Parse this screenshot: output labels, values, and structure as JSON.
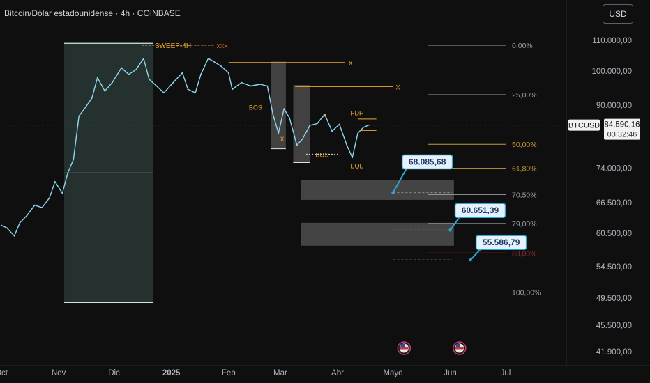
{
  "header": {
    "title": "Bitcoin/Dólar estadounidense · 4h · COINBASE",
    "currency_button": "USD"
  },
  "colors": {
    "background": "#0f0f0f",
    "price_line": "#8ed8f0",
    "fib_gray": "#9a9ea6",
    "fib_gold": "#c49a3c",
    "fib_red": "#8b2e2e",
    "annotation": "#f0a830",
    "sweep": "#e06a3a",
    "zone_fill": "#4a4a4a",
    "callout_border": "#2aa9d6",
    "callout_fill": "#e6f2fb",
    "callout_text": "#1e3a66"
  },
  "chart_data": {
    "type": "line",
    "symbol": "BTCUSD",
    "last_price": "84.590,16",
    "countdown": "03:32:46",
    "y_axis": {
      "scale": "log",
      "range": [
        40500,
        117000
      ],
      "tick_values": [
        110000,
        100000,
        90000,
        84590.16,
        74000,
        66500,
        60500,
        54500,
        49500,
        45500,
        41900
      ],
      "tick_labels": [
        "110.000,00",
        "100.000,00",
        "90.000,00",
        "84.590,16",
        "74.000,00",
        "66.500,00",
        "60.500,00",
        "54.500,00",
        "49.500,00",
        "45.500,00",
        "41.900,00"
      ]
    },
    "x_axis": {
      "range": [
        "2024-10-01",
        "2025-07-16"
      ],
      "tick_dates": [
        "2024-10-01",
        "2024-11-01",
        "2024-12-01",
        "2025-01-01",
        "2025-02-01",
        "2025-03-01",
        "2025-04-01",
        "2025-05-01",
        "2025-06-01",
        "2025-07-01"
      ],
      "tick_labels": [
        "Oct",
        "Nov",
        "Dic",
        "2025",
        "Feb",
        "Mar",
        "Abr",
        "Mayo",
        "Jun",
        "Jul"
      ]
    },
    "series": [
      {
        "x": [
          "2024-10-01",
          "2024-10-04",
          "2024-10-08",
          "2024-10-11",
          "2024-10-15",
          "2024-10-19",
          "2024-10-23",
          "2024-10-27",
          "2024-10-30",
          "2024-11-03",
          "2024-11-06",
          "2024-11-09",
          "2024-11-12",
          "2024-11-15",
          "2024-11-19",
          "2024-11-22",
          "2024-11-26",
          "2024-11-30",
          "2024-12-05",
          "2024-12-09",
          "2024-12-13",
          "2024-12-17",
          "2024-12-20",
          "2024-12-24",
          "2024-12-28",
          "2025-01-02",
          "2025-01-07",
          "2025-01-10",
          "2025-01-14",
          "2025-01-17",
          "2025-01-21",
          "2025-01-24",
          "2025-01-28",
          "2025-02-01",
          "2025-02-03",
          "2025-02-08",
          "2025-02-13",
          "2025-02-18",
          "2025-02-22",
          "2025-02-25",
          "2025-02-28",
          "2025-03-03",
          "2025-03-06",
          "2025-03-10",
          "2025-03-13",
          "2025-03-17",
          "2025-03-21",
          "2025-03-25",
          "2025-03-29",
          "2025-04-02",
          "2025-04-06",
          "2025-04-09",
          "2025-04-12",
          "2025-04-15",
          "2025-04-18"
        ],
        "y": [
          62000,
          61500,
          60000,
          62500,
          64000,
          66000,
          65500,
          67500,
          71000,
          68500,
          73000,
          76000,
          87000,
          89000,
          92000,
          98000,
          94000,
          96500,
          101000,
          99000,
          100500,
          104000,
          97500,
          95500,
          93500,
          96500,
          99500,
          94500,
          93500,
          99000,
          104000,
          103000,
          101500,
          99500,
          94500,
          96500,
          95500,
          96000,
          95500,
          87500,
          82500,
          89000,
          86500,
          79500,
          81000,
          84500,
          85000,
          87500,
          83000,
          84800,
          79500,
          76500,
          82500,
          84000,
          84590.16
        ]
      }
    ],
    "fibonacci": [
      {
        "ratio_label": "0,00%",
        "price": 108350,
        "color": "#9a9ea6"
      },
      {
        "ratio_label": "25,00%",
        "price": 92950,
        "color": "#9a9ea6"
      },
      {
        "ratio_label": "50,00%",
        "price": 79700,
        "color": "#c49a3c"
      },
      {
        "ratio_label": "61,80%",
        "price": 74000,
        "color": "#c49a3c"
      },
      {
        "ratio_label": "70,50%",
        "price": 68200,
        "color": "#9a9ea6"
      },
      {
        "ratio_label": "79,00%",
        "price": 62350,
        "color": "#9a9ea6"
      },
      {
        "ratio_label": "88,00%",
        "price": 56900,
        "color": "#8b2e2e"
      },
      {
        "ratio_label": "100,00%",
        "price": 50400,
        "color": "#9a9ea6"
      }
    ],
    "price_callouts": [
      {
        "label": "68.085,68",
        "price": 68085.68
      },
      {
        "label": "60.651,39",
        "price": 60651.39
      },
      {
        "label": "55.586,79",
        "price": 55586.79
      }
    ],
    "annotations": {
      "sweep": "SWEEP-4H",
      "xxx": "XXX",
      "bos1": "BOS",
      "bos2": "BOS",
      "pdh": "PDH",
      "eql": "EQL",
      "x_mark": "X"
    },
    "grid": false,
    "legend": "none"
  }
}
